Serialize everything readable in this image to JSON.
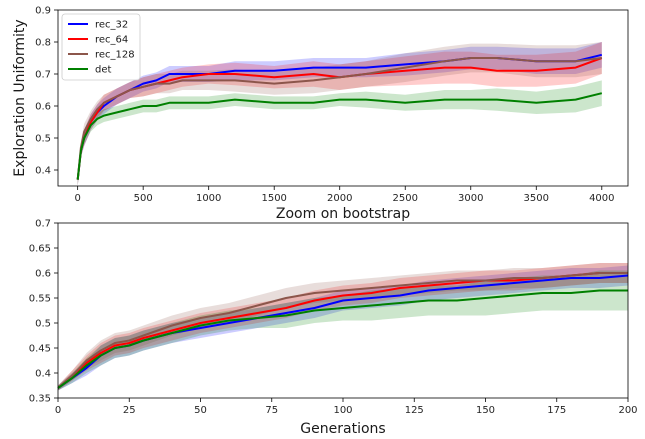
{
  "chart_data": [
    {
      "type": "line",
      "title": "",
      "xlabel": "",
      "ylabel": "Exploration Uniformity",
      "xlim": [
        -150,
        4200
      ],
      "ylim": [
        0.35,
        0.9
      ],
      "xticks": [
        0,
        500,
        1000,
        1500,
        2000,
        2500,
        3000,
        3500,
        4000
      ],
      "yticks": [
        0.4,
        0.5,
        0.6,
        0.7,
        0.8,
        0.9
      ],
      "grid": false,
      "legend": "top-left",
      "series": [
        {
          "name": "rec_32",
          "color": "#0000ff",
          "x": [
            0,
            25,
            50,
            100,
            150,
            200,
            300,
            400,
            500,
            600,
            700,
            800,
            1000,
            1200,
            1500,
            1800,
            2000,
            2200,
            2500,
            2800,
            3000,
            3200,
            3500,
            3800,
            4000
          ],
          "y": [
            0.37,
            0.46,
            0.5,
            0.55,
            0.58,
            0.6,
            0.63,
            0.65,
            0.67,
            0.68,
            0.7,
            0.7,
            0.7,
            0.71,
            0.71,
            0.72,
            0.72,
            0.72,
            0.73,
            0.74,
            0.75,
            0.75,
            0.74,
            0.74,
            0.76
          ],
          "band": [
            0.02,
            0.02,
            0.025,
            0.025,
            0.025,
            0.025,
            0.025,
            0.025,
            0.025,
            0.025,
            0.025,
            0.025,
            0.025,
            0.03,
            0.03,
            0.03,
            0.03,
            0.03,
            0.035,
            0.035,
            0.035,
            0.035,
            0.04,
            0.04,
            0.04
          ]
        },
        {
          "name": "rec_64",
          "color": "#ff0000",
          "x": [
            0,
            25,
            50,
            100,
            150,
            200,
            300,
            400,
            500,
            600,
            700,
            800,
            1000,
            1200,
            1500,
            1800,
            2000,
            2200,
            2500,
            2800,
            3000,
            3200,
            3500,
            3800,
            4000
          ],
          "y": [
            0.37,
            0.46,
            0.5,
            0.55,
            0.58,
            0.61,
            0.63,
            0.65,
            0.66,
            0.67,
            0.68,
            0.69,
            0.7,
            0.7,
            0.69,
            0.7,
            0.69,
            0.7,
            0.71,
            0.72,
            0.72,
            0.71,
            0.71,
            0.72,
            0.75
          ],
          "band": [
            0.02,
            0.02,
            0.025,
            0.025,
            0.025,
            0.025,
            0.025,
            0.025,
            0.03,
            0.03,
            0.03,
            0.03,
            0.03,
            0.035,
            0.035,
            0.04,
            0.04,
            0.04,
            0.045,
            0.05,
            0.05,
            0.05,
            0.05,
            0.05,
            0.05
          ]
        },
        {
          "name": "rec_128",
          "color": "#8c564b",
          "x": [
            0,
            25,
            50,
            100,
            150,
            200,
            300,
            400,
            500,
            600,
            700,
            800,
            1000,
            1200,
            1500,
            1800,
            2000,
            2200,
            2500,
            2800,
            3000,
            3200,
            3500,
            3800,
            4000
          ],
          "y": [
            0.37,
            0.47,
            0.52,
            0.56,
            0.59,
            0.61,
            0.63,
            0.65,
            0.66,
            0.67,
            0.67,
            0.68,
            0.68,
            0.68,
            0.67,
            0.68,
            0.69,
            0.7,
            0.72,
            0.74,
            0.75,
            0.75,
            0.74,
            0.74,
            0.75
          ],
          "band": [
            0.02,
            0.02,
            0.025,
            0.025,
            0.025,
            0.025,
            0.025,
            0.025,
            0.03,
            0.03,
            0.03,
            0.03,
            0.03,
            0.035,
            0.035,
            0.04,
            0.04,
            0.04,
            0.045,
            0.045,
            0.045,
            0.045,
            0.05,
            0.05,
            0.05
          ]
        },
        {
          "name": "det",
          "color": "#008000",
          "x": [
            0,
            25,
            50,
            100,
            150,
            200,
            300,
            400,
            500,
            600,
            700,
            800,
            1000,
            1200,
            1500,
            1800,
            2000,
            2200,
            2500,
            2800,
            3000,
            3200,
            3500,
            3800,
            4000
          ],
          "y": [
            0.37,
            0.46,
            0.5,
            0.54,
            0.56,
            0.57,
            0.58,
            0.59,
            0.6,
            0.6,
            0.61,
            0.61,
            0.61,
            0.62,
            0.61,
            0.61,
            0.62,
            0.62,
            0.61,
            0.62,
            0.62,
            0.62,
            0.61,
            0.62,
            0.64
          ],
          "band": [
            0.02,
            0.02,
            0.02,
            0.02,
            0.02,
            0.02,
            0.02,
            0.02,
            0.02,
            0.02,
            0.02,
            0.02,
            0.02,
            0.02,
            0.02,
            0.02,
            0.02,
            0.025,
            0.025,
            0.03,
            0.03,
            0.035,
            0.035,
            0.04,
            0.04
          ]
        }
      ]
    },
    {
      "type": "line",
      "title": "Zoom on bootstrap",
      "xlabel": "Generations",
      "ylabel": "",
      "xlim": [
        0,
        200
      ],
      "ylim": [
        0.35,
        0.7
      ],
      "xticks": [
        0,
        25,
        50,
        75,
        100,
        125,
        150,
        175,
        200
      ],
      "yticks": [
        0.35,
        0.4,
        0.45,
        0.5,
        0.55,
        0.6,
        0.65,
        0.7
      ],
      "grid": false,
      "legend": "",
      "series": [
        {
          "name": "rec_32",
          "color": "#0000ff",
          "x": [
            0,
            5,
            10,
            15,
            20,
            25,
            30,
            40,
            50,
            60,
            70,
            80,
            90,
            100,
            110,
            120,
            130,
            140,
            150,
            160,
            170,
            180,
            190,
            200
          ],
          "y": [
            0.37,
            0.39,
            0.41,
            0.435,
            0.45,
            0.455,
            0.465,
            0.48,
            0.49,
            0.5,
            0.51,
            0.52,
            0.53,
            0.545,
            0.55,
            0.555,
            0.565,
            0.57,
            0.575,
            0.58,
            0.585,
            0.59,
            0.59,
            0.595
          ],
          "band": [
            0.005,
            0.01,
            0.015,
            0.02,
            0.02,
            0.02,
            0.02,
            0.02,
            0.02,
            0.02,
            0.02,
            0.02,
            0.02,
            0.02,
            0.02,
            0.02,
            0.02,
            0.02,
            0.02,
            0.02,
            0.02,
            0.02,
            0.02,
            0.02
          ]
        },
        {
          "name": "rec_64",
          "color": "#ff0000",
          "x": [
            0,
            5,
            10,
            15,
            20,
            25,
            30,
            40,
            50,
            60,
            70,
            80,
            90,
            100,
            110,
            120,
            130,
            140,
            150,
            160,
            170,
            180,
            190,
            200
          ],
          "y": [
            0.37,
            0.395,
            0.42,
            0.44,
            0.455,
            0.46,
            0.47,
            0.485,
            0.5,
            0.51,
            0.52,
            0.53,
            0.545,
            0.555,
            0.56,
            0.57,
            0.575,
            0.58,
            0.585,
            0.585,
            0.59,
            0.595,
            0.6,
            0.6
          ],
          "band": [
            0.005,
            0.01,
            0.015,
            0.02,
            0.02,
            0.02,
            0.02,
            0.02,
            0.02,
            0.02,
            0.02,
            0.02,
            0.02,
            0.02,
            0.02,
            0.02,
            0.02,
            0.02,
            0.02,
            0.02,
            0.02,
            0.02,
            0.02,
            0.02
          ]
        },
        {
          "name": "rec_128",
          "color": "#8c564b",
          "x": [
            0,
            5,
            10,
            15,
            20,
            25,
            30,
            40,
            50,
            60,
            70,
            80,
            90,
            100,
            110,
            120,
            130,
            140,
            150,
            160,
            170,
            180,
            190,
            200
          ],
          "y": [
            0.37,
            0.395,
            0.425,
            0.445,
            0.46,
            0.465,
            0.475,
            0.495,
            0.51,
            0.52,
            0.535,
            0.55,
            0.56,
            0.565,
            0.57,
            0.575,
            0.58,
            0.585,
            0.585,
            0.59,
            0.59,
            0.595,
            0.6,
            0.6
          ],
          "band": [
            0.005,
            0.01,
            0.015,
            0.02,
            0.02,
            0.02,
            0.02,
            0.02,
            0.02,
            0.02,
            0.02,
            0.02,
            0.02,
            0.02,
            0.02,
            0.02,
            0.02,
            0.02,
            0.02,
            0.02,
            0.02,
            0.02,
            0.02,
            0.02
          ]
        },
        {
          "name": "det",
          "color": "#008000",
          "x": [
            0,
            5,
            10,
            15,
            20,
            25,
            30,
            40,
            50,
            60,
            70,
            80,
            90,
            100,
            110,
            120,
            130,
            140,
            150,
            160,
            170,
            180,
            190,
            200
          ],
          "y": [
            0.37,
            0.39,
            0.415,
            0.435,
            0.45,
            0.455,
            0.465,
            0.48,
            0.495,
            0.505,
            0.51,
            0.515,
            0.525,
            0.53,
            0.535,
            0.54,
            0.545,
            0.545,
            0.55,
            0.555,
            0.56,
            0.56,
            0.565,
            0.565
          ],
          "band": [
            0.005,
            0.01,
            0.015,
            0.02,
            0.02,
            0.02,
            0.02,
            0.02,
            0.02,
            0.02,
            0.02,
            0.025,
            0.025,
            0.025,
            0.03,
            0.03,
            0.03,
            0.03,
            0.035,
            0.035,
            0.035,
            0.035,
            0.04,
            0.04
          ]
        }
      ]
    }
  ]
}
